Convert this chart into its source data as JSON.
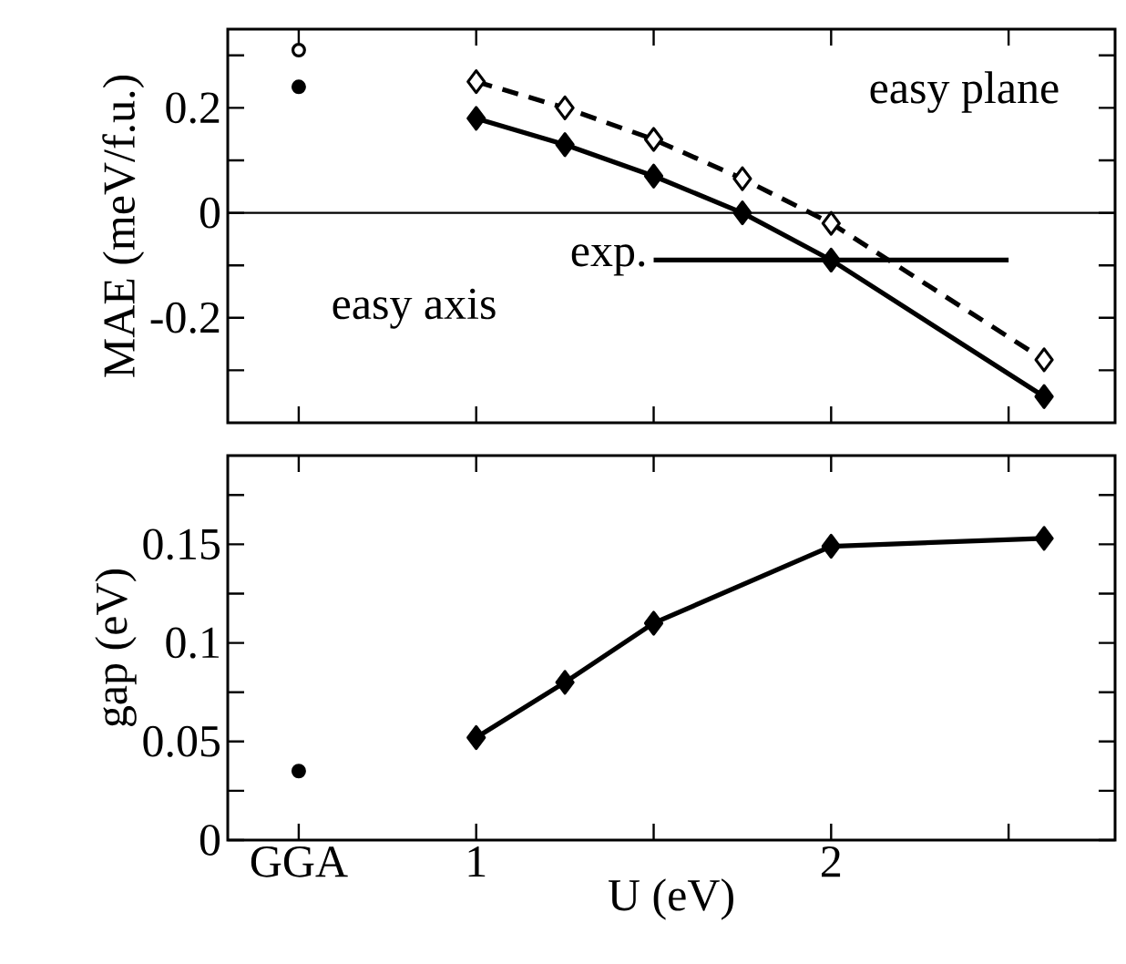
{
  "chart_data": [
    {
      "type": "line",
      "ylabel": "MAE (meV/f.u.)",
      "xlim": [
        0.3,
        2.8
      ],
      "ylim": [
        -0.4,
        0.35
      ],
      "xticks": [
        {
          "value": 0.5,
          "label": null
        },
        {
          "value": 1,
          "label": null
        },
        {
          "value": 1.5,
          "label": null
        },
        {
          "value": 2,
          "label": null
        },
        {
          "value": 2.5,
          "label": null
        }
      ],
      "yticks": [
        {
          "value": -0.3,
          "label": null
        },
        -0.2,
        {
          "value": -0.1,
          "label": null
        },
        0,
        {
          "value": 0.1,
          "label": null
        },
        0.2,
        {
          "value": 0.3,
          "label": null
        }
      ],
      "tick_labels": "y",
      "series": [
        {
          "color": "#000000",
          "marker": "diamond",
          "line_style": "solid",
          "x": [
            1,
            1.25,
            1.5,
            1.75,
            2,
            2.6
          ],
          "values": [
            0.18,
            0.13,
            0.07,
            0,
            -0.09,
            -0.35
          ]
        },
        {
          "color": "#ffffff",
          "marker": "diamond",
          "line_style": "dashed",
          "x": [
            1,
            1.25,
            1.5,
            1.75,
            2,
            2.6
          ],
          "values": [
            0.25,
            0.2,
            0.14,
            0.065,
            -0.02,
            -0.28
          ]
        },
        {
          "type": "scatter",
          "color": "#ffffff",
          "marker": "circle",
          "x": [
            0.5
          ],
          "values": [
            0.31
          ]
        },
        {
          "type": "scatter",
          "color": "#000000",
          "marker": "circle",
          "x": [
            0.5
          ],
          "values": [
            0.24
          ]
        },
        {
          "name": "exp.",
          "color": "#000000",
          "marker": "none",
          "line_style": "solid",
          "x": [
            1.5,
            2.5
          ],
          "values": [
            -0.09,
            -0.09
          ]
        }
      ],
      "ref_lines": [
        {
          "axis": "y",
          "value": 0,
          "color": "#000000"
        }
      ],
      "annotations": [
        "easy plane",
        "easy axis"
      ]
    },
    {
      "type": "line",
      "xlabel": "U (eV)",
      "ylabel": "gap (eV)",
      "xlim": [
        0.3,
        2.8
      ],
      "ylim": [
        0,
        0.195
      ],
      "xticks": [
        {
          "value": 0.5,
          "label": "GGA"
        },
        1,
        {
          "value": 1.5,
          "label": null
        },
        2,
        {
          "value": 2.5,
          "label": null
        }
      ],
      "yticks": [
        0,
        {
          "value": 0.025,
          "label": null
        },
        0.05,
        {
          "value": 0.075,
          "label": null
        },
        0.1,
        {
          "value": 0.125,
          "label": null
        },
        0.15,
        {
          "value": 0.175,
          "label": null
        }
      ],
      "series": [
        {
          "color": "#000000",
          "marker": "diamond",
          "line_style": "solid",
          "x": [
            1,
            1.25,
            1.5,
            2,
            2.6
          ],
          "values": [
            0.052,
            0.08,
            0.11,
            0.149,
            0.153
          ]
        },
        {
          "type": "scatter",
          "color": "#000000",
          "marker": "circle",
          "x": [
            0.5
          ],
          "values": [
            0.035
          ]
        }
      ]
    }
  ]
}
